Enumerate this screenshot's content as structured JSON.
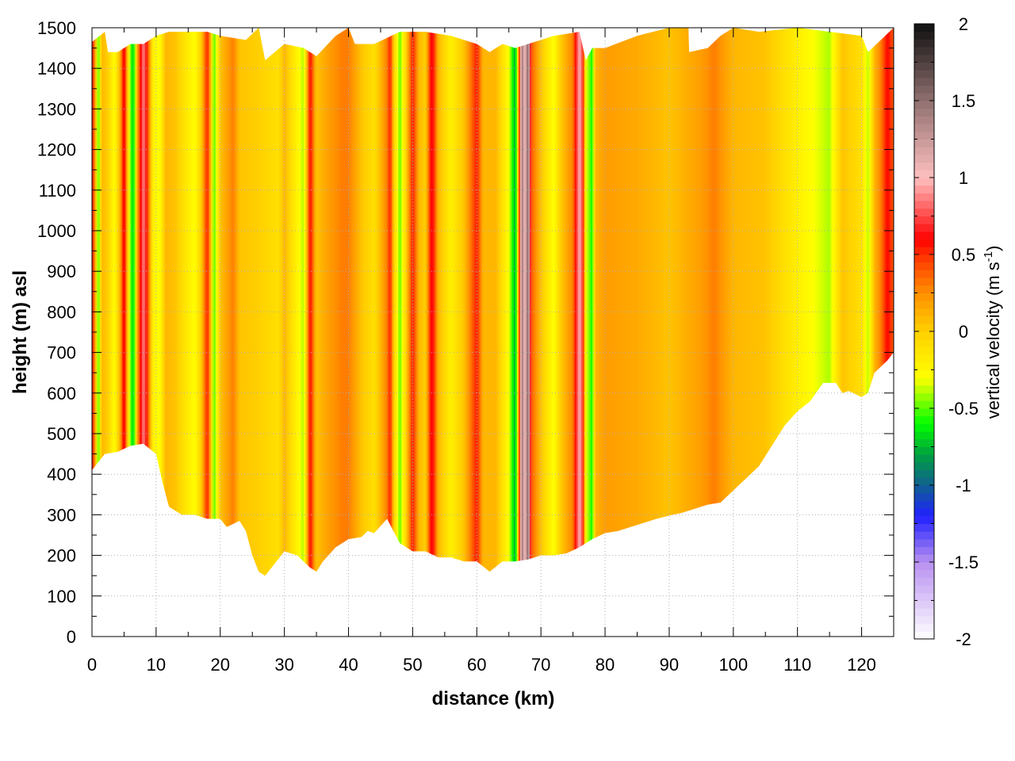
{
  "chart_data": {
    "type": "heatmap",
    "title": "",
    "xlabel": "distance (km)",
    "ylabel": "height (m) asl",
    "xlim": [
      0,
      125
    ],
    "ylim": [
      0,
      1500
    ],
    "x_ticks": [
      "0",
      "10",
      "20",
      "30",
      "40",
      "50",
      "60",
      "70",
      "80",
      "90",
      "100",
      "110",
      "120"
    ],
    "y_ticks": [
      "0",
      "100",
      "200",
      "300",
      "400",
      "500",
      "600",
      "700",
      "800",
      "900",
      "1000",
      "1100",
      "1200",
      "1300",
      "1400",
      "1500"
    ],
    "grid": true,
    "colorbar": {
      "label": "vertical velocity (m s",
      "label_sup": "-1",
      "label_end": ")",
      "range": [
        -2,
        2
      ],
      "ticks": [
        "2",
        "1.5",
        "1",
        "0.5",
        "0",
        "-0.5",
        "-1",
        "-1.5",
        "-2"
      ],
      "colormap": [
        [
          -2,
          "#ffffff"
        ],
        [
          -1.5,
          "#b890f0"
        ],
        [
          -1.2,
          "#2020ff"
        ],
        [
          -1.0,
          "#106090"
        ],
        [
          -0.8,
          "#00a040"
        ],
        [
          -0.6,
          "#00ff00"
        ],
        [
          -0.45,
          "#80ff00"
        ],
        [
          -0.3,
          "#ffff00"
        ],
        [
          0,
          "#ffd000"
        ],
        [
          0.25,
          "#ff9000"
        ],
        [
          0.5,
          "#ff3000"
        ],
        [
          0.6,
          "#ff0000"
        ],
        [
          1.0,
          "#ffc0c0"
        ],
        [
          1.5,
          "#907070"
        ],
        [
          2.0,
          "#101010"
        ]
      ]
    },
    "terrain_height_m": [
      [
        0,
        410
      ],
      [
        2,
        450
      ],
      [
        4,
        455
      ],
      [
        6,
        470
      ],
      [
        8,
        475
      ],
      [
        10,
        450
      ],
      [
        11,
        380
      ],
      [
        12,
        320
      ],
      [
        14,
        300
      ],
      [
        16,
        300
      ],
      [
        18,
        290
      ],
      [
        20,
        290
      ],
      [
        21,
        270
      ],
      [
        23,
        285
      ],
      [
        24,
        260
      ],
      [
        25,
        200
      ],
      [
        26,
        160
      ],
      [
        27,
        150
      ],
      [
        28,
        170
      ],
      [
        30,
        210
      ],
      [
        32,
        200
      ],
      [
        34,
        170
      ],
      [
        35,
        160
      ],
      [
        36,
        185
      ],
      [
        38,
        220
      ],
      [
        40,
        240
      ],
      [
        42,
        245
      ],
      [
        43,
        260
      ],
      [
        44,
        255
      ],
      [
        46,
        290
      ],
      [
        48,
        230
      ],
      [
        50,
        210
      ],
      [
        52,
        210
      ],
      [
        54,
        195
      ],
      [
        56,
        195
      ],
      [
        58,
        185
      ],
      [
        60,
        185
      ],
      [
        62,
        160
      ],
      [
        64,
        185
      ],
      [
        66,
        185
      ],
      [
        68,
        190
      ],
      [
        70,
        200
      ],
      [
        72,
        200
      ],
      [
        74,
        205
      ],
      [
        76,
        220
      ],
      [
        78,
        240
      ],
      [
        80,
        255
      ],
      [
        82,
        260
      ],
      [
        84,
        270
      ],
      [
        86,
        280
      ],
      [
        88,
        290
      ],
      [
        90,
        298
      ],
      [
        92,
        305
      ],
      [
        94,
        315
      ],
      [
        96,
        325
      ],
      [
        98,
        330
      ],
      [
        100,
        360
      ],
      [
        102,
        390
      ],
      [
        104,
        420
      ],
      [
        106,
        470
      ],
      [
        108,
        520
      ],
      [
        110,
        555
      ],
      [
        112,
        580
      ],
      [
        114,
        625
      ],
      [
        116,
        625
      ],
      [
        117,
        600
      ],
      [
        118,
        605
      ],
      [
        120,
        590
      ],
      [
        121,
        600
      ],
      [
        122,
        650
      ],
      [
        124,
        680
      ],
      [
        125,
        700
      ]
    ],
    "top_height_m": [
      [
        0,
        1465
      ],
      [
        2,
        1490
      ],
      [
        2.5,
        1440
      ],
      [
        4,
        1440
      ],
      [
        6,
        1460
      ],
      [
        8,
        1460
      ],
      [
        10,
        1480
      ],
      [
        12,
        1490
      ],
      [
        18,
        1490
      ],
      [
        20,
        1480
      ],
      [
        24,
        1470
      ],
      [
        26,
        1500
      ],
      [
        27,
        1420
      ],
      [
        30,
        1460
      ],
      [
        33,
        1450
      ],
      [
        35,
        1430
      ],
      [
        38,
        1480
      ],
      [
        40,
        1500
      ],
      [
        41,
        1460
      ],
      [
        44,
        1460
      ],
      [
        48,
        1490
      ],
      [
        52,
        1490
      ],
      [
        56,
        1480
      ],
      [
        60,
        1460
      ],
      [
        62,
        1440
      ],
      [
        64,
        1460
      ],
      [
        66,
        1450
      ],
      [
        68,
        1460
      ],
      [
        72,
        1480
      ],
      [
        76,
        1490
      ],
      [
        77,
        1420
      ],
      [
        78,
        1450
      ],
      [
        80,
        1450
      ],
      [
        85,
        1480
      ],
      [
        90,
        1500
      ],
      [
        93,
        1500
      ],
      [
        93.1,
        1440
      ],
      [
        96,
        1450
      ],
      [
        98,
        1480
      ],
      [
        100,
        1500
      ],
      [
        104,
        1490
      ],
      [
        110,
        1500
      ],
      [
        120,
        1480
      ],
      [
        121,
        1440
      ],
      [
        125,
        1500
      ]
    ],
    "vertical_velocity_profile": [
      [
        0,
        0.6
      ],
      [
        0.5,
        0.2
      ],
      [
        1,
        -0.6
      ],
      [
        1.5,
        0.1
      ],
      [
        2.5,
        0.0
      ],
      [
        3.5,
        -0.3
      ],
      [
        4.5,
        0.2
      ],
      [
        5,
        0.7
      ],
      [
        5.5,
        0.1
      ],
      [
        6,
        -0.5
      ],
      [
        6.5,
        -0.7
      ],
      [
        7,
        0.1
      ],
      [
        8,
        0.9
      ],
      [
        8.5,
        0.6
      ],
      [
        9.5,
        -0.2
      ],
      [
        10.5,
        -0.3
      ],
      [
        11.5,
        0.1
      ],
      [
        13,
        0.05
      ],
      [
        16,
        -0.3
      ],
      [
        17,
        0.0
      ],
      [
        18,
        0.55
      ],
      [
        18.5,
        0.1
      ],
      [
        19,
        -0.55
      ],
      [
        20,
        0.05
      ],
      [
        22,
        0.3
      ],
      [
        23,
        0.05
      ],
      [
        26,
        0.0
      ],
      [
        29,
        -0.1
      ],
      [
        30,
        0.1
      ],
      [
        33,
        -0.4
      ],
      [
        34,
        0.6
      ],
      [
        35,
        0.05
      ],
      [
        37,
        0.2
      ],
      [
        39,
        0.3
      ],
      [
        40,
        0.3
      ],
      [
        42,
        0.05
      ],
      [
        44,
        -0.1
      ],
      [
        46,
        0.3
      ],
      [
        46.5,
        0.55
      ],
      [
        47,
        0.05
      ],
      [
        48,
        -0.5
      ],
      [
        49,
        0.0
      ],
      [
        50,
        0.55
      ],
      [
        51,
        0.1
      ],
      [
        52,
        0.0
      ],
      [
        53,
        0.7
      ],
      [
        54,
        0.1
      ],
      [
        56,
        -0.2
      ],
      [
        58,
        0.05
      ],
      [
        60,
        0.55
      ],
      [
        61,
        0.1
      ],
      [
        63,
        0.1
      ],
      [
        65,
        -0.3
      ],
      [
        66,
        -0.8
      ],
      [
        66.5,
        0.1
      ],
      [
        67,
        1.5
      ],
      [
        67.5,
        1.0
      ],
      [
        68,
        1.6
      ],
      [
        68.5,
        0.4
      ],
      [
        70,
        0.05
      ],
      [
        72,
        -0.3
      ],
      [
        73,
        0.0
      ],
      [
        75,
        0.3
      ],
      [
        76,
        1.0
      ],
      [
        76.5,
        0.7
      ],
      [
        77,
        -0.3
      ],
      [
        78,
        -0.6
      ],
      [
        78.5,
        0.1
      ],
      [
        80,
        0.2
      ],
      [
        85,
        0.15
      ],
      [
        90,
        0.05
      ],
      [
        95,
        0.2
      ],
      [
        97,
        0.3
      ],
      [
        100,
        0.1
      ],
      [
        105,
        0.05
      ],
      [
        110,
        -0.2
      ],
      [
        115,
        -0.4
      ],
      [
        117,
        0.05
      ],
      [
        120,
        -0.1
      ],
      [
        121,
        -0.4
      ],
      [
        122,
        0.1
      ],
      [
        123,
        0.3
      ],
      [
        124,
        0.6
      ],
      [
        125,
        0.4
      ]
    ]
  }
}
